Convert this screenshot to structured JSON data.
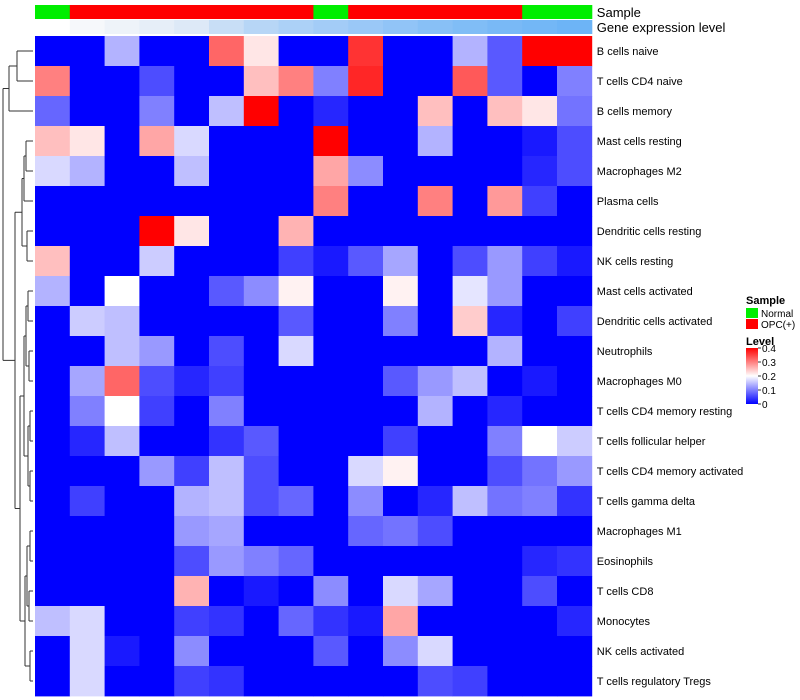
{
  "chart_data": {
    "type": "heatmap",
    "annotation_rows": [
      {
        "name": "Sample",
        "colors": [
          "#00ee00",
          "#ff0000",
          "#ff0000",
          "#ff0000",
          "#ff0000",
          "#ff0000",
          "#ff0000",
          "#ff0000",
          "#00ee00",
          "#ff0000",
          "#ff0000",
          "#ff0000",
          "#ff0000",
          "#ff0000",
          "#00ee00",
          "#00ee00"
        ]
      },
      {
        "name": "Gene expression level",
        "colors": [
          "#ffffff",
          "#f6f8fb",
          "#eef3f9",
          "#e6eef8",
          "#dde9f7",
          "#c8def6",
          "#b7d6f6",
          "#acd1f7",
          "#a3ccf7",
          "#9ac8f7",
          "#91c4f7",
          "#88c0f6",
          "#80bdf6",
          "#79b9f6",
          "#73b7f6",
          "#6db4f6"
        ]
      }
    ],
    "rows": [
      "B cells naive",
      "T cells CD4 naive",
      "B cells memory",
      "Mast cells resting",
      "Macrophages M2",
      "Plasma cells",
      "Dendritic cells resting",
      "NK cells resting",
      "Mast cells activated",
      "Dendritic cells activated",
      "Neutrophils",
      "Macrophages M0",
      "T cells CD4 memory resting",
      "T cells follicular helper",
      "T cells CD4 memory activated",
      "T cells gamma delta",
      "Macrophages M1",
      "Eosinophils",
      "T cells CD8",
      "Monocytes",
      "NK cells activated",
      "T cells regulatory  Tregs"
    ],
    "values": [
      [
        0,
        0,
        0.14,
        0,
        0,
        0.32,
        0.22,
        0,
        0,
        0.36,
        0,
        0,
        0.14,
        0.07,
        0.4,
        0.4
      ],
      [
        0.3,
        0,
        0,
        0.06,
        0,
        0,
        0.25,
        0.3,
        0.1,
        0.37,
        0,
        0,
        0.33,
        0.07,
        0,
        0.1
      ],
      [
        0.08,
        0,
        0,
        0.1,
        0,
        0.15,
        0.4,
        0,
        0.03,
        0,
        0,
        0.25,
        0,
        0.25,
        0.22,
        0.09
      ],
      [
        0.25,
        0.22,
        0,
        0.27,
        0.17,
        0,
        0,
        0,
        0.4,
        0,
        0,
        0.14,
        0,
        0,
        0.02,
        0.06
      ],
      [
        0.17,
        0.14,
        0,
        0,
        0.15,
        0,
        0,
        0,
        0.27,
        0.11,
        0,
        0,
        0,
        0,
        0.03,
        0.06
      ],
      [
        0,
        0,
        0,
        0,
        0,
        0,
        0,
        0,
        0.3,
        0,
        0,
        0.3,
        0,
        0.28,
        0.05,
        0
      ],
      [
        0,
        0,
        0,
        0.4,
        0.22,
        0,
        0,
        0.26,
        0,
        0,
        0,
        0,
        0,
        0,
        0,
        0
      ],
      [
        0.25,
        0,
        0,
        0.16,
        0,
        0,
        0,
        0.05,
        0.02,
        0.07,
        0.13,
        0,
        0.06,
        0.12,
        0.05,
        0.02
      ],
      [
        0.14,
        0,
        0.2,
        0,
        0,
        0.07,
        0.11,
        0.21,
        0,
        0,
        0.21,
        0,
        0.18,
        0.12,
        0,
        0
      ],
      [
        0,
        0.16,
        0.15,
        0,
        0,
        0,
        0,
        0.07,
        0,
        0,
        0.1,
        0,
        0.24,
        0.03,
        0,
        0.05
      ],
      [
        0,
        0,
        0.15,
        0.12,
        0,
        0.06,
        0,
        0.17,
        0,
        0,
        0,
        0,
        0,
        0.14,
        0,
        0
      ],
      [
        0,
        0.13,
        0.32,
        0.06,
        0.03,
        0.05,
        0,
        0,
        0,
        0,
        0.07,
        0.12,
        0.15,
        0,
        0.02,
        0
      ],
      [
        0,
        0.1,
        0.2,
        0.05,
        0,
        0.1,
        0,
        0,
        0,
        0,
        0,
        0.14,
        0,
        0.03,
        0,
        0
      ],
      [
        0,
        0.03,
        0.15,
        0,
        0,
        0.04,
        0.07,
        0,
        0,
        0,
        0.05,
        0,
        0,
        0.1,
        0.2,
        0.16
      ],
      [
        0,
        0,
        0,
        0.12,
        0.05,
        0.15,
        0.06,
        0,
        0,
        0.17,
        0.21,
        0,
        0,
        0.06,
        0.09,
        0.12
      ],
      [
        0,
        0.05,
        0,
        0,
        0.14,
        0.15,
        0.06,
        0.08,
        0,
        0.11,
        0,
        0.03,
        0.15,
        0.09,
        0.1,
        0.04
      ],
      [
        0,
        0,
        0,
        0,
        0.12,
        0.13,
        0,
        0,
        0,
        0.08,
        0.09,
        0.06,
        0,
        0,
        0,
        0
      ],
      [
        0,
        0,
        0,
        0,
        0.06,
        0.12,
        0.1,
        0.08,
        0,
        0,
        0,
        0,
        0,
        0,
        0.03,
        0.04
      ],
      [
        0,
        0,
        0,
        0,
        0.26,
        0,
        0.02,
        0,
        0.11,
        0,
        0.17,
        0.13,
        0,
        0,
        0.06,
        0
      ],
      [
        0.15,
        0.17,
        0,
        0,
        0.05,
        0.04,
        0,
        0.08,
        0.04,
        0.02,
        0.27,
        0,
        0,
        0,
        0,
        0.03
      ],
      [
        0,
        0.17,
        0.02,
        0,
        0.11,
        0,
        0,
        0,
        0.07,
        0,
        0.11,
        0.17,
        0,
        0,
        0,
        0
      ],
      [
        0,
        0.17,
        0,
        0,
        0.05,
        0.04,
        0,
        0,
        0,
        0,
        0,
        0.06,
        0.05,
        0,
        0,
        0
      ]
    ],
    "color_scale": {
      "min": 0,
      "max": 0.4,
      "low": "#0000ff",
      "mid": "#ffffff",
      "high": "#ff0000"
    },
    "dendrogram": {
      "side": "left"
    },
    "legend": {
      "placement": "right",
      "sample": {
        "title": "Sample",
        "items": [
          {
            "label": "Normal",
            "color": "#00ee00"
          },
          {
            "label": "OPC(+)",
            "color": "#ff0000"
          }
        ]
      },
      "level": {
        "title": "Level",
        "ticks": [
          "0.4",
          "0.3",
          "0.2",
          "0.1",
          "0"
        ]
      }
    }
  }
}
